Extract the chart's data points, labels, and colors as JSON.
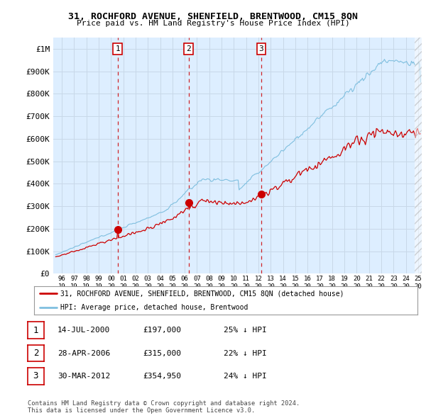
{
  "title": "31, ROCHFORD AVENUE, SHENFIELD, BRENTWOOD, CM15 8QN",
  "subtitle": "Price paid vs. HM Land Registry's House Price Index (HPI)",
  "ylabel_ticks": [
    "£0",
    "£100K",
    "£200K",
    "£300K",
    "£400K",
    "£500K",
    "£600K",
    "£700K",
    "£800K",
    "£900K",
    "£1M"
  ],
  "ytick_values": [
    0,
    100000,
    200000,
    300000,
    400000,
    500000,
    600000,
    700000,
    800000,
    900000,
    1000000
  ],
  "ylim": [
    0,
    1050000
  ],
  "xlim_start": 1995.3,
  "xlim_end": 2025.3,
  "hpi_color": "#7fbfdf",
  "price_color": "#cc0000",
  "sale_marker_color": "#cc0000",
  "grid_color": "#c8d8e8",
  "bg_color": "#ffffff",
  "chart_bg": "#ddeeff",
  "sale_points": [
    {
      "year": 2000.54,
      "price": 197000,
      "label": "1"
    },
    {
      "year": 2006.32,
      "price": 315000,
      "label": "2"
    },
    {
      "year": 2012.24,
      "price": 354950,
      "label": "3"
    }
  ],
  "legend_entries": [
    {
      "color": "#cc0000",
      "text": "31, ROCHFORD AVENUE, SHENFIELD, BRENTWOOD, CM15 8QN (detached house)"
    },
    {
      "color": "#7fbfdf",
      "text": "HPI: Average price, detached house, Brentwood"
    }
  ],
  "table_rows": [
    {
      "num": "1",
      "date": "14-JUL-2000",
      "price": "£197,000",
      "pct": "25% ↓ HPI"
    },
    {
      "num": "2",
      "date": "28-APR-2006",
      "price": "£315,000",
      "pct": "22% ↓ HPI"
    },
    {
      "num": "3",
      "date": "30-MAR-2012",
      "price": "£354,950",
      "pct": "24% ↓ HPI"
    }
  ],
  "footer": "Contains HM Land Registry data © Crown copyright and database right 2024.\nThis data is licensed under the Open Government Licence v3.0.",
  "vline_color": "#cc0000",
  "vline_style": "--",
  "hpi_seed": 12345,
  "price_seed": 67890
}
